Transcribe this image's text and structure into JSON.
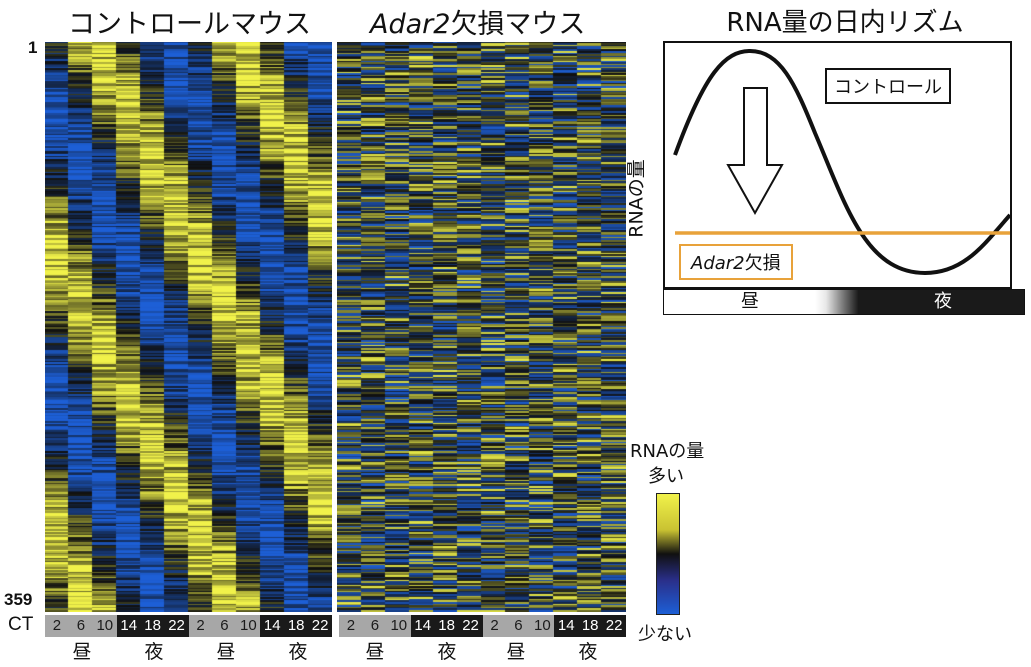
{
  "titles": {
    "control": "コントロールマウス",
    "mutant_prefix": "Adar2",
    "mutant_suffix": "欠損マウス",
    "inset": "RNA量の日内リズム"
  },
  "rows": {
    "top": "1",
    "bottom": "359"
  },
  "ct": {
    "label": "CT",
    "times": [
      "2",
      "6",
      "10",
      "14",
      "18",
      "22",
      "2",
      "6",
      "10",
      "14",
      "18",
      "22"
    ],
    "phase": [
      "day",
      "day",
      "day",
      "night",
      "night",
      "night",
      "day",
      "day",
      "day",
      "night",
      "night",
      "night"
    ],
    "periods": [
      "昼",
      "夜",
      "昼",
      "夜"
    ]
  },
  "legend": {
    "title": "RNAの量",
    "high": "多い",
    "low": "少ない",
    "colors": {
      "high": "#f1f24a",
      "mid": "#101010",
      "low": "#1d5fd6"
    }
  },
  "inset": {
    "ylabel": "RNAの量",
    "control_label": "コントロール",
    "mutant_label_italic": "Adar2",
    "mutant_label_rest": "欠損",
    "day": "昼",
    "night": "夜",
    "colors": {
      "control": "#111111",
      "mutant": "#e8a23a"
    }
  }
}
